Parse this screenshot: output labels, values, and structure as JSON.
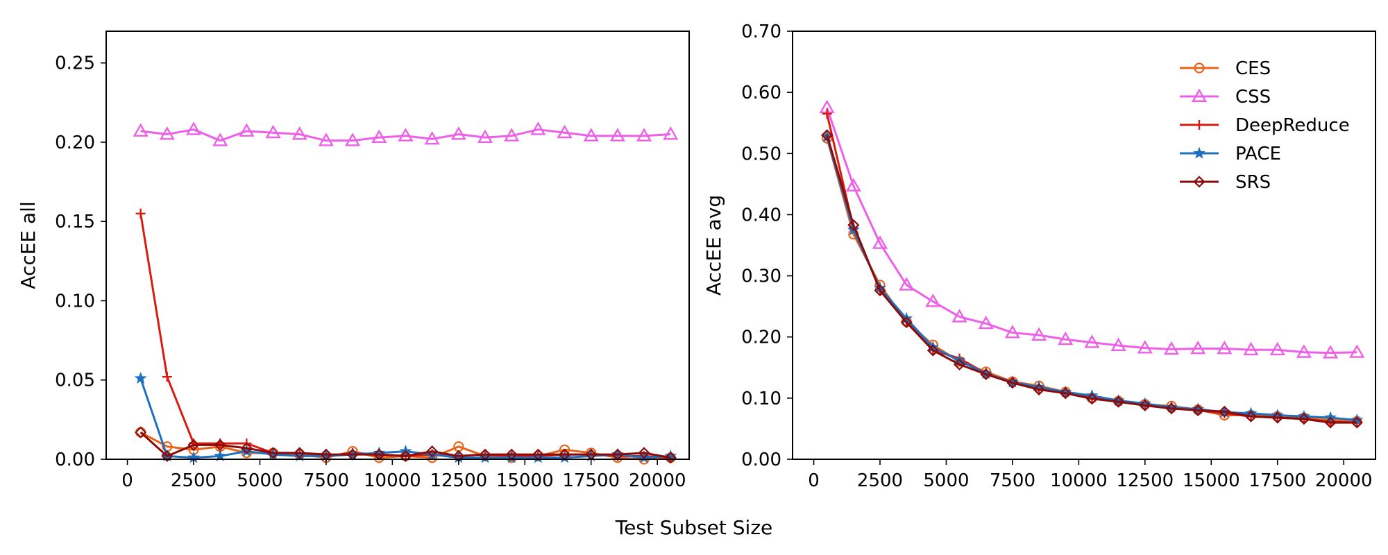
{
  "figure": {
    "xlabel": "Test Subset Size"
  },
  "series_styles": [
    {
      "name": "CES",
      "color": "#e8641a",
      "marker": "circle"
    },
    {
      "name": "CSS",
      "color": "#ee5fe8",
      "marker": "triangle"
    },
    {
      "name": "DeepReduce",
      "color": "#d91c10",
      "marker": "plus"
    },
    {
      "name": "PACE",
      "color": "#1f6fbf",
      "marker": "star"
    },
    {
      "name": "SRS",
      "color": "#8b0a0a",
      "marker": "diamond"
    }
  ],
  "chart_data": [
    {
      "type": "line",
      "ylabel": "AccEE all",
      "xlim": [
        -800,
        21200
      ],
      "ylim": [
        0,
        0.27
      ],
      "xticks": [
        0,
        2500,
        5000,
        7500,
        10000,
        12500,
        15000,
        17500,
        20000
      ],
      "yticks": [
        0.0,
        0.05,
        0.1,
        0.15,
        0.2,
        0.25
      ],
      "ytick_labels": [
        "0.00",
        "0.05",
        "0.10",
        "0.15",
        "0.20",
        "0.25"
      ],
      "legend": "none",
      "x": [
        500,
        1500,
        2500,
        3500,
        4500,
        5500,
        6500,
        7500,
        8500,
        9500,
        10500,
        11500,
        12500,
        13500,
        14500,
        15500,
        16500,
        17500,
        18500,
        19500,
        20500
      ],
      "series": [
        {
          "name": "CES",
          "values": [
            0.017,
            0.008,
            0.006,
            0.008,
            0.004,
            0.004,
            0.003,
            0.001,
            0.005,
            0.001,
            0.002,
            0.001,
            0.008,
            0.002,
            0.001,
            0.002,
            0.006,
            0.004,
            0.001,
            0.0,
            0.001
          ]
        },
        {
          "name": "CSS",
          "values": [
            0.207,
            0.205,
            0.208,
            0.201,
            0.207,
            0.206,
            0.205,
            0.201,
            0.201,
            0.203,
            0.204,
            0.202,
            0.205,
            0.203,
            0.204,
            0.208,
            0.206,
            0.204,
            0.204,
            0.204,
            0.205
          ]
        },
        {
          "name": "DeepReduce",
          "values": [
            0.155,
            0.052,
            0.01,
            0.01,
            0.01,
            0.004,
            0.004,
            0.002,
            0.004,
            0.003,
            0.002,
            0.003,
            0.002,
            0.003,
            0.002,
            0.002,
            0.003,
            0.003,
            0.002,
            0.002,
            0.001
          ]
        },
        {
          "name": "PACE",
          "values": [
            0.051,
            0.002,
            0.001,
            0.002,
            0.005,
            0.003,
            0.002,
            0.002,
            0.003,
            0.004,
            0.005,
            0.003,
            0.001,
            0.001,
            0.001,
            0.001,
            0.001,
            0.002,
            0.003,
            0.001,
            0.002
          ]
        },
        {
          "name": "SRS",
          "values": [
            0.017,
            0.002,
            0.009,
            0.009,
            0.007,
            0.004,
            0.004,
            0.003,
            0.003,
            0.003,
            0.002,
            0.005,
            0.002,
            0.003,
            0.003,
            0.003,
            0.003,
            0.003,
            0.003,
            0.004,
            0.001
          ]
        }
      ]
    },
    {
      "type": "line",
      "ylabel": "AccEE avg",
      "xlim": [
        -800,
        21200
      ],
      "ylim": [
        0,
        0.7
      ],
      "xticks": [
        0,
        2500,
        5000,
        7500,
        10000,
        12500,
        15000,
        17500,
        20000
      ],
      "yticks": [
        0.0,
        0.1,
        0.2,
        0.3,
        0.4,
        0.5,
        0.6,
        0.7
      ],
      "ytick_labels": [
        "0.00",
        "0.10",
        "0.20",
        "0.30",
        "0.40",
        "0.50",
        "0.60",
        "0.70"
      ],
      "legend": "top-right",
      "x": [
        500,
        1500,
        2500,
        3500,
        4500,
        5500,
        6500,
        7500,
        8500,
        9500,
        10500,
        11500,
        12500,
        13500,
        14500,
        15500,
        16500,
        17500,
        18500,
        19500,
        20500
      ],
      "series": [
        {
          "name": "CES",
          "values": [
            0.525,
            0.368,
            0.285,
            0.225,
            0.187,
            0.16,
            0.143,
            0.127,
            0.12,
            0.11,
            0.1,
            0.095,
            0.09,
            0.087,
            0.081,
            0.072,
            0.072,
            0.07,
            0.068,
            0.064,
            0.062
          ]
        },
        {
          "name": "CSS",
          "values": [
            0.575,
            0.447,
            0.353,
            0.285,
            0.258,
            0.233,
            0.222,
            0.207,
            0.203,
            0.196,
            0.191,
            0.186,
            0.182,
            0.18,
            0.181,
            0.181,
            0.179,
            0.179,
            0.175,
            0.174,
            0.175
          ]
        },
        {
          "name": "DeepReduce",
          "values": [
            0.565,
            0.378,
            0.278,
            0.225,
            0.178,
            0.165,
            0.14,
            0.125,
            0.115,
            0.108,
            0.1,
            0.095,
            0.088,
            0.085,
            0.08,
            0.075,
            0.07,
            0.068,
            0.066,
            0.061,
            0.06
          ]
        },
        {
          "name": "PACE",
          "values": [
            0.527,
            0.375,
            0.28,
            0.23,
            0.183,
            0.161,
            0.14,
            0.126,
            0.118,
            0.11,
            0.104,
            0.096,
            0.091,
            0.085,
            0.082,
            0.077,
            0.075,
            0.072,
            0.07,
            0.068,
            0.064
          ]
        },
        {
          "name": "SRS",
          "values": [
            0.53,
            0.383,
            0.276,
            0.224,
            0.178,
            0.155,
            0.139,
            0.125,
            0.114,
            0.108,
            0.099,
            0.094,
            0.088,
            0.083,
            0.08,
            0.078,
            0.07,
            0.068,
            0.066,
            0.06,
            0.06
          ]
        }
      ]
    }
  ]
}
